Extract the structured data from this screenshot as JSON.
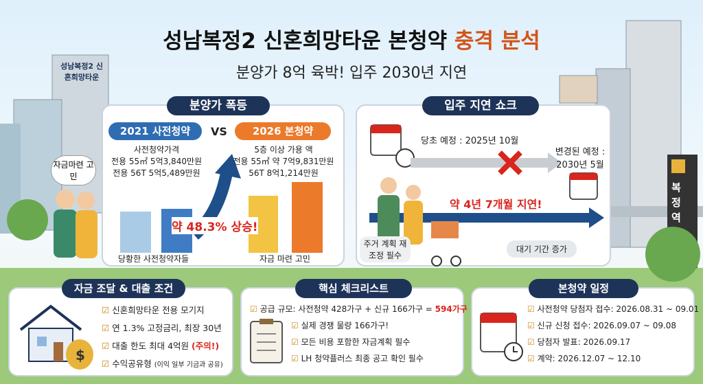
{
  "header": {
    "title_main": "성남복정2 신혼희망타운 본청약",
    "title_highlight": "충격 분석",
    "subtitle": "분양가 8억 육박! 입주 2030년 지연"
  },
  "scene": {
    "building_sign": "성남복정2 신혼희망타운",
    "bubble": "자금마련 고민",
    "station": "복정역"
  },
  "price_panel": {
    "title": "분양가 폭등",
    "left_tag": "2021 사전청약",
    "vs": "VS",
    "right_tag": "2026 본청약",
    "left_lines": [
      "사전청약가격",
      "전용 55㎡ 5억3,840만원",
      "전용 56T 5억5,489만원"
    ],
    "right_lines": [
      "5층 이상 가용 액",
      "전용 55㎡ 약 7억9,831만원",
      "56T 8억1,214만원"
    ],
    "rise": "약 48.3% 상승!",
    "left_caption": "당황한 사전청약자들",
    "right_caption": "자금 마련 고민"
  },
  "delay_panel": {
    "title": "입주 지연 쇼크",
    "original": "당초 예정 : 2025년 10월",
    "changed": "변경된 예정 : 2030년 5월",
    "delay": "약 4년 7개월 지연!",
    "bubble": "주거 계획 재조정 필수",
    "wait": "대기 기간 증가"
  },
  "finance_panel": {
    "title": "자금 조달 & 대출 조건",
    "items": [
      {
        "text": "신혼희망타운 전용 모기지"
      },
      {
        "text": "연 1.3% 고정금리, 최장 30년"
      },
      {
        "text": "대출 한도 최대 4억원",
        "note": "(주의!)"
      },
      {
        "text": "수익공유형",
        "small": "(이익 일부 기금과 공유)"
      }
    ]
  },
  "checklist_panel": {
    "title": "핵심 체크리스트",
    "items": [
      {
        "text": "공급 규모: 사전청약 428가구 + 신규 166가구 =",
        "note": "594가구"
      },
      {
        "text": "실제 경쟁 물량 166가구!"
      },
      {
        "text": "모든 비용 포함한 자금계획 필수"
      },
      {
        "text": "LH 청약플러스 최종 공고 확인 필수"
      }
    ]
  },
  "schedule_panel": {
    "title": "본청약 일정",
    "items": [
      {
        "text": "사전청약 당첨자 접수: 2026.08.31 ~ 09.01"
      },
      {
        "text": "신규 신청 접수: 2026.09.07 ~ 09.08"
      },
      {
        "text": "당첨자 발표: 2026.09.17"
      },
      {
        "text": "계약: 2026.12.07 ~ 12.10"
      }
    ]
  }
}
